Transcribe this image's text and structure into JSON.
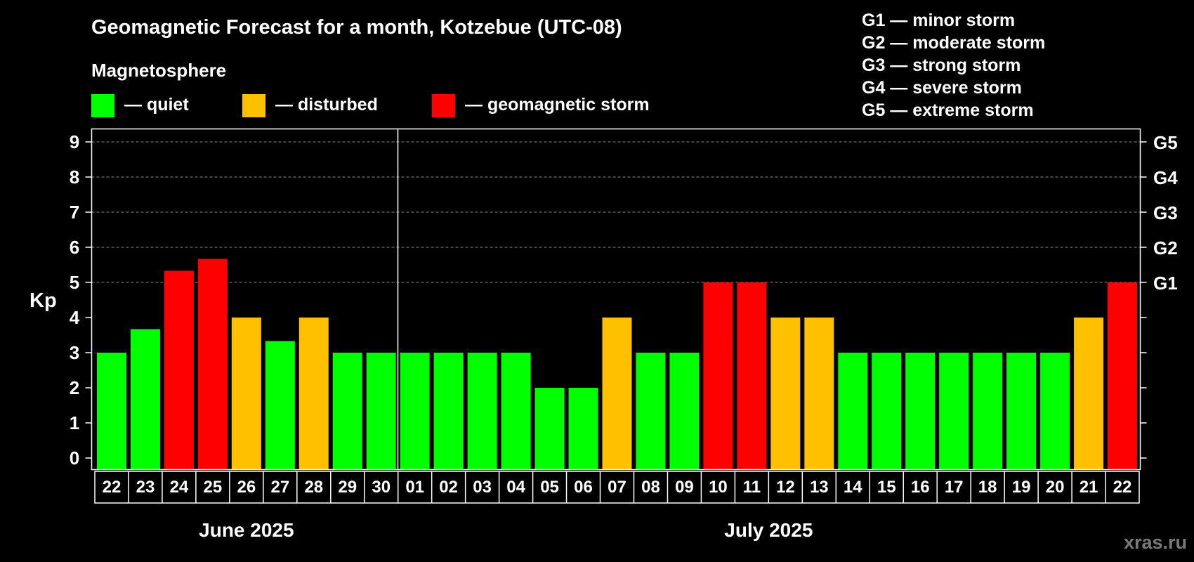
{
  "chart_data": {
    "type": "bar",
    "title": "Geomagnetic Forecast for a month, Kotzebue (UTC-08)",
    "subtitle": "Magnetosphere",
    "ylabel": "Kp",
    "ylim": [
      0,
      9
    ],
    "yticks": [
      "0",
      "1",
      "2",
      "3",
      "4",
      "5",
      "6",
      "7",
      "8",
      "9"
    ],
    "right_ticks": [
      {
        "kp": 5,
        "label": "G1"
      },
      {
        "kp": 6,
        "label": "G2"
      },
      {
        "kp": 7,
        "label": "G3"
      },
      {
        "kp": 8,
        "label": "G4"
      },
      {
        "kp": 9,
        "label": "G5"
      }
    ],
    "legend": [
      {
        "label": "— quiet",
        "color": "#00ff00",
        "status": "quiet"
      },
      {
        "label": "— disturbed",
        "color": "#ffc000",
        "status": "disturbed"
      },
      {
        "label": "— geomagnetic storm",
        "color": "#ff0000",
        "status": "storm"
      }
    ],
    "storm_scale": [
      "G1 — minor storm",
      "G2 — moderate storm",
      "G3 — strong storm",
      "G4 — severe storm",
      "G5 — extreme storm"
    ],
    "months": [
      {
        "label": "June 2025",
        "first_index": 0,
        "last_index": 8
      },
      {
        "label": "July 2025",
        "first_index": 9,
        "last_index": 30
      }
    ],
    "categories": [
      "22",
      "23",
      "24",
      "25",
      "26",
      "27",
      "28",
      "29",
      "30",
      "01",
      "02",
      "03",
      "04",
      "05",
      "06",
      "07",
      "08",
      "09",
      "10",
      "11",
      "12",
      "13",
      "14",
      "15",
      "16",
      "17",
      "18",
      "19",
      "20",
      "21",
      "22"
    ],
    "values": [
      3,
      3.67,
      5.33,
      5.67,
      4,
      3.33,
      4,
      3,
      3,
      3,
      3,
      3,
      3,
      2,
      2,
      4,
      3,
      3,
      5,
      5,
      4,
      4,
      3,
      3,
      3,
      3,
      3,
      3,
      3,
      4,
      5
    ],
    "status": [
      "quiet",
      "quiet",
      "storm",
      "storm",
      "disturbed",
      "quiet",
      "disturbed",
      "quiet",
      "quiet",
      "quiet",
      "quiet",
      "quiet",
      "quiet",
      "quiet",
      "quiet",
      "disturbed",
      "quiet",
      "quiet",
      "storm",
      "storm",
      "disturbed",
      "disturbed",
      "quiet",
      "quiet",
      "quiet",
      "quiet",
      "quiet",
      "quiet",
      "quiet",
      "disturbed",
      "storm"
    ],
    "grid": true
  },
  "watermark": "xras.ru"
}
